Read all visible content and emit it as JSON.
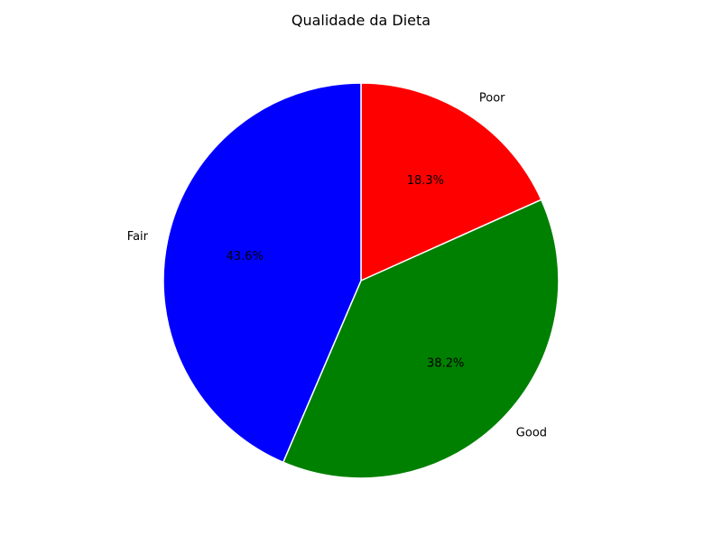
{
  "chart_data": {
    "type": "pie",
    "title": "Qualidade da Dieta",
    "slices": [
      {
        "label": "Poor",
        "value": 18.3,
        "pct_label": "18.3%",
        "color": "#ff0000"
      },
      {
        "label": "Good",
        "value": 38.2,
        "pct_label": "38.2%",
        "color": "#008000"
      },
      {
        "label": "Fair",
        "value": 43.6,
        "pct_label": "43.6%",
        "color": "#0000ff"
      }
    ],
    "start_angle_deg": 90,
    "direction": "clockwise",
    "edge_color": "#ffffff"
  }
}
